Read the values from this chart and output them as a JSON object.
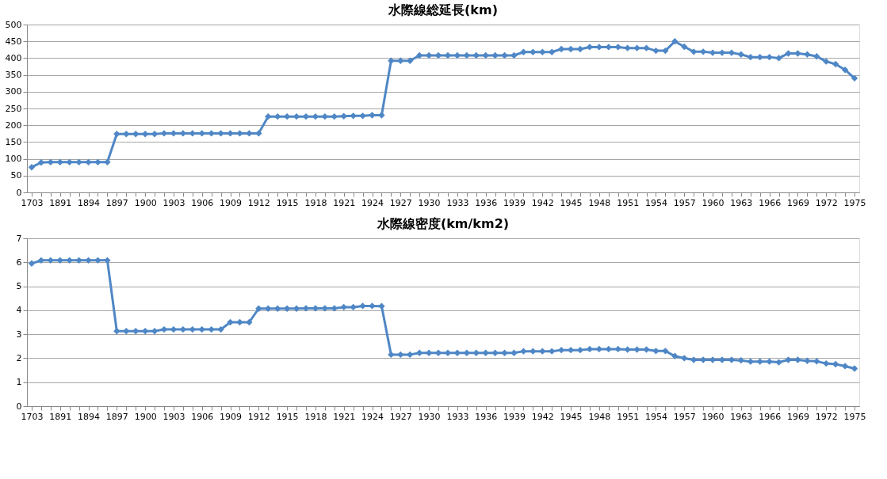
{
  "chart_data": [
    {
      "type": "line",
      "title": "水際線総延長(km)",
      "categories": [
        "1703",
        null,
        null,
        "1891",
        null,
        null,
        "1894",
        null,
        null,
        "1897",
        null,
        null,
        "1900",
        null,
        null,
        "1903",
        null,
        null,
        "1906",
        null,
        null,
        "1909",
        null,
        null,
        "1912",
        null,
        null,
        "1915",
        null,
        null,
        "1918",
        null,
        null,
        "1921",
        null,
        null,
        "1924",
        null,
        null,
        "1927",
        null,
        null,
        "1930",
        null,
        null,
        "1933",
        null,
        null,
        "1936",
        null,
        null,
        "1939",
        null,
        null,
        "1942",
        null,
        null,
        "1945",
        null,
        null,
        "1948",
        null,
        null,
        "1951",
        null,
        null,
        "1954",
        null,
        null,
        "1957",
        null,
        null,
        "1960",
        null,
        null,
        "1963",
        null,
        null,
        "1966",
        null,
        null,
        "1969",
        null,
        null,
        "1972",
        null,
        null,
        "1975"
      ],
      "series": [
        {
          "color": "#4f87c6",
          "values": [
            75,
            89,
            90,
            90,
            90,
            90,
            90,
            90,
            90,
            174,
            174,
            174,
            174,
            174,
            176,
            176,
            176,
            176,
            176,
            176,
            176,
            176,
            176,
            176,
            176,
            226,
            226,
            226,
            226,
            226,
            226,
            226,
            226,
            227,
            228,
            228,
            230,
            230,
            392,
            392,
            392,
            408,
            408,
            408,
            408,
            408,
            408,
            408,
            408,
            408,
            408,
            408,
            418,
            418,
            418,
            418,
            427,
            427,
            427,
            433,
            433,
            433,
            433,
            430,
            430,
            430,
            422,
            422,
            450,
            434,
            419,
            419,
            416,
            416,
            416,
            411,
            403,
            403,
            403,
            400,
            414,
            414,
            411,
            405,
            390,
            382,
            365,
            340
          ]
        }
      ],
      "ylim": [
        0,
        500
      ],
      "yticks": [
        0,
        50,
        100,
        150,
        200,
        250,
        300,
        350,
        400,
        450,
        500
      ],
      "grid": "y",
      "marker": "diamond"
    },
    {
      "type": "line",
      "title": "水際線密度(km/km2)",
      "categories": [
        "1703",
        null,
        null,
        "1891",
        null,
        null,
        "1894",
        null,
        null,
        "1897",
        null,
        null,
        "1900",
        null,
        null,
        "1903",
        null,
        null,
        "1906",
        null,
        null,
        "1909",
        null,
        null,
        "1912",
        null,
        null,
        "1915",
        null,
        null,
        "1918",
        null,
        null,
        "1921",
        null,
        null,
        "1924",
        null,
        null,
        "1927",
        null,
        null,
        "1930",
        null,
        null,
        "1933",
        null,
        null,
        "1936",
        null,
        null,
        "1939",
        null,
        null,
        "1942",
        null,
        null,
        "1945",
        null,
        null,
        "1948",
        null,
        null,
        "1951",
        null,
        null,
        "1954",
        null,
        null,
        "1957",
        null,
        null,
        "1960",
        null,
        null,
        "1963",
        null,
        null,
        "1966",
        null,
        null,
        "1969",
        null,
        null,
        "1972",
        null,
        null,
        "1975"
      ],
      "series": [
        {
          "color": "#4f87c6",
          "values": [
            5.95,
            6.08,
            6.08,
            6.08,
            6.08,
            6.08,
            6.08,
            6.08,
            6.08,
            3.13,
            3.13,
            3.13,
            3.13,
            3.13,
            3.2,
            3.2,
            3.2,
            3.2,
            3.2,
            3.2,
            3.2,
            3.5,
            3.5,
            3.5,
            4.07,
            4.07,
            4.07,
            4.07,
            4.07,
            4.08,
            4.08,
            4.08,
            4.08,
            4.13,
            4.13,
            4.18,
            4.18,
            4.17,
            2.15,
            2.15,
            2.15,
            2.22,
            2.22,
            2.22,
            2.22,
            2.22,
            2.22,
            2.22,
            2.22,
            2.22,
            2.22,
            2.22,
            2.29,
            2.29,
            2.29,
            2.29,
            2.34,
            2.34,
            2.34,
            2.38,
            2.38,
            2.38,
            2.38,
            2.36,
            2.36,
            2.36,
            2.3,
            2.3,
            2.09,
            2.0,
            1.93,
            1.93,
            1.93,
            1.93,
            1.93,
            1.91,
            1.86,
            1.86,
            1.86,
            1.83,
            1.93,
            1.93,
            1.89,
            1.87,
            1.78,
            1.75,
            1.67,
            1.57
          ]
        }
      ],
      "ylim": [
        0,
        7
      ],
      "yticks": [
        0,
        1,
        2,
        3,
        4,
        5,
        6,
        7
      ],
      "grid": "y",
      "marker": "diamond"
    }
  ]
}
